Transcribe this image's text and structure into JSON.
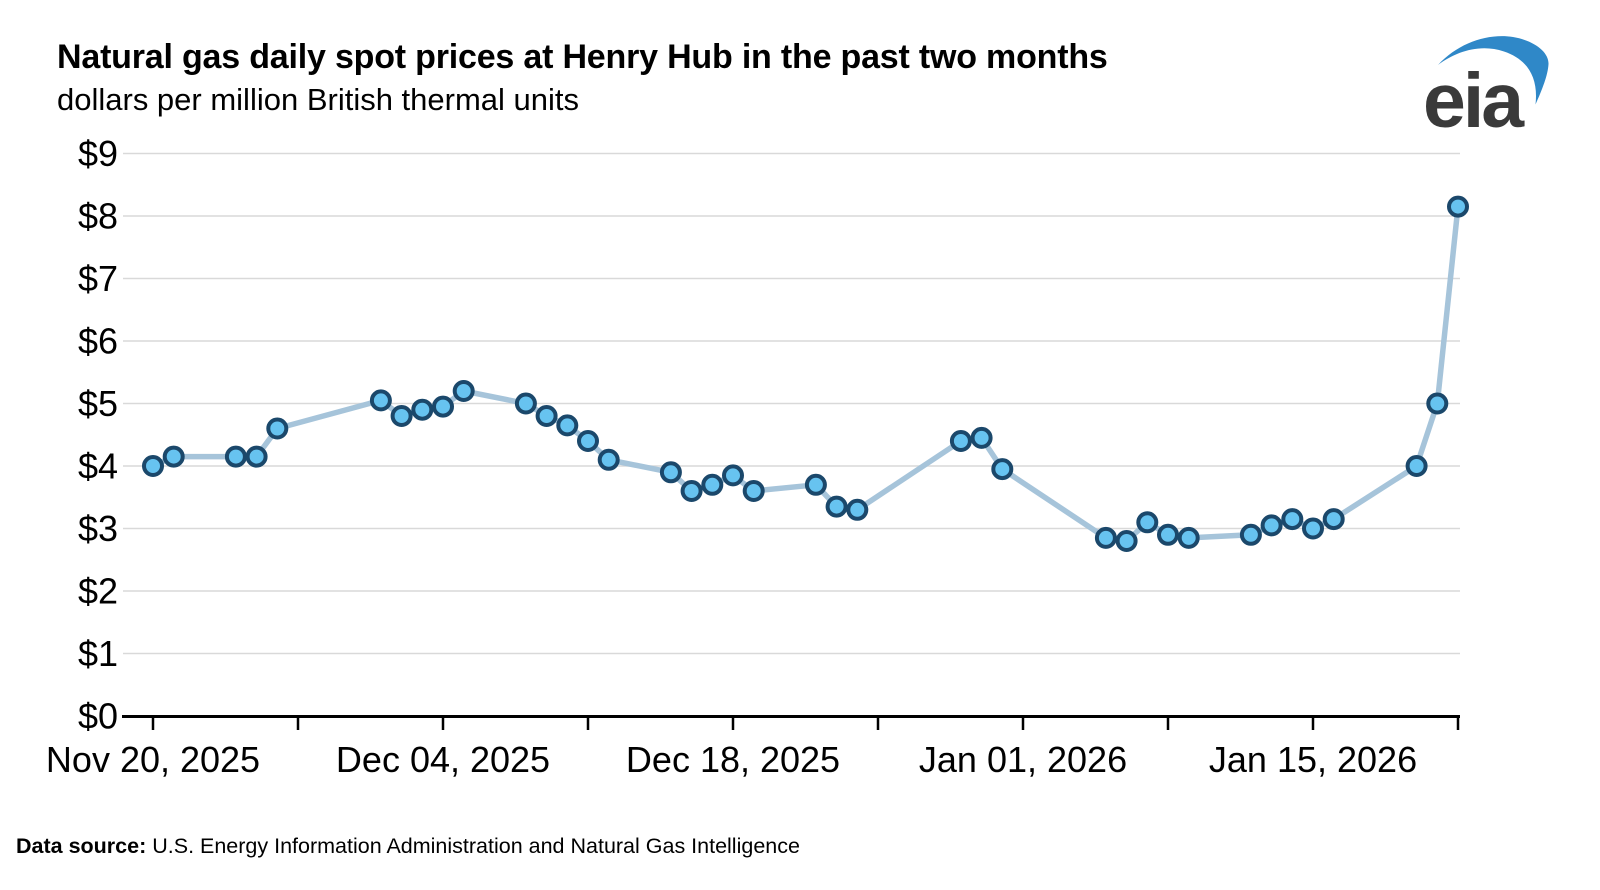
{
  "header": {
    "title": "Natural gas daily spot prices at Henry Hub in the past two months",
    "subtitle": "dollars per million British thermal units"
  },
  "logo": {
    "text": "eia"
  },
  "footer": {
    "source_label": "Data source:",
    "source_text": " U.S. Energy Information Administration and Natural Gas Intelligence"
  },
  "chart_data": {
    "type": "line",
    "title": "Natural gas daily spot prices at Henry Hub in the past two months",
    "subtitle": "dollars per million British thermal units",
    "ylabel": "dollars per million British thermal units",
    "ylim": [
      0,
      9
    ],
    "ytick_labels": [
      "$0",
      "$1",
      "$2",
      "$3",
      "$4",
      "$5",
      "$6",
      "$7",
      "$8",
      "$9"
    ],
    "grid": "horizontal",
    "legend": "none",
    "colors": {
      "line": "#a6c4da",
      "marker_fill": "#67c3f0",
      "marker_stroke": "#1b486b",
      "gridline": "#d9d9d9",
      "axis": "#000000"
    },
    "x_axis": {
      "start_date": "Nov 20, 2025",
      "end_date": "Jan 22, 2026",
      "tick_days": [
        0,
        7,
        14,
        21,
        28,
        35,
        42,
        49,
        56,
        63
      ],
      "labeled_ticks": [
        {
          "day": 0,
          "label": "Nov 20, 2025"
        },
        {
          "day": 14,
          "label": "Dec 04, 2025"
        },
        {
          "day": 28,
          "label": "Dec 18, 2025"
        },
        {
          "day": 42,
          "label": "Jan 01, 2026"
        },
        {
          "day": 56,
          "label": "Jan 15, 2026"
        }
      ]
    },
    "series": [
      {
        "name": "Henry Hub daily spot price",
        "points": [
          {
            "date": "Nov 20, 2025",
            "day": 0,
            "value": 4.0
          },
          {
            "date": "Nov 21, 2025",
            "day": 1,
            "value": 4.15
          },
          {
            "date": "Nov 24, 2025",
            "day": 4,
            "value": 4.15
          },
          {
            "date": "Nov 25, 2025",
            "day": 5,
            "value": 4.15
          },
          {
            "date": "Nov 26, 2025",
            "day": 6,
            "value": 4.6
          },
          {
            "date": "Dec 01, 2025",
            "day": 11,
            "value": 5.05
          },
          {
            "date": "Dec 02, 2025",
            "day": 12,
            "value": 4.8
          },
          {
            "date": "Dec 03, 2025",
            "day": 13,
            "value": 4.9
          },
          {
            "date": "Dec 04, 2025",
            "day": 14,
            "value": 4.95
          },
          {
            "date": "Dec 05, 2025",
            "day": 15,
            "value": 5.2
          },
          {
            "date": "Dec 08, 2025",
            "day": 18,
            "value": 5.0
          },
          {
            "date": "Dec 09, 2025",
            "day": 19,
            "value": 4.8
          },
          {
            "date": "Dec 10, 2025",
            "day": 20,
            "value": 4.65
          },
          {
            "date": "Dec 11, 2025",
            "day": 21,
            "value": 4.4
          },
          {
            "date": "Dec 12, 2025",
            "day": 22,
            "value": 4.1
          },
          {
            "date": "Dec 15, 2025",
            "day": 25,
            "value": 3.9
          },
          {
            "date": "Dec 16, 2025",
            "day": 26,
            "value": 3.6
          },
          {
            "date": "Dec 17, 2025",
            "day": 27,
            "value": 3.7
          },
          {
            "date": "Dec 18, 2025",
            "day": 28,
            "value": 3.85
          },
          {
            "date": "Dec 19, 2025",
            "day": 29,
            "value": 3.6
          },
          {
            "date": "Dec 22, 2025",
            "day": 32,
            "value": 3.7
          },
          {
            "date": "Dec 23, 2025",
            "day": 33,
            "value": 3.35
          },
          {
            "date": "Dec 24, 2025",
            "day": 34,
            "value": 3.3
          },
          {
            "date": "Dec 29, 2025",
            "day": 39,
            "value": 4.4
          },
          {
            "date": "Dec 30, 2025",
            "day": 40,
            "value": 4.45
          },
          {
            "date": "Dec 31, 2025",
            "day": 41,
            "value": 3.95
          },
          {
            "date": "Jan 05, 2026",
            "day": 46,
            "value": 2.85
          },
          {
            "date": "Jan 06, 2026",
            "day": 47,
            "value": 2.8
          },
          {
            "date": "Jan 07, 2026",
            "day": 48,
            "value": 3.1
          },
          {
            "date": "Jan 08, 2026",
            "day": 49,
            "value": 2.9
          },
          {
            "date": "Jan 09, 2026",
            "day": 50,
            "value": 2.85
          },
          {
            "date": "Jan 12, 2026",
            "day": 53,
            "value": 2.9
          },
          {
            "date": "Jan 13, 2026",
            "day": 54,
            "value": 3.05
          },
          {
            "date": "Jan 14, 2026",
            "day": 55,
            "value": 3.15
          },
          {
            "date": "Jan 15, 2026",
            "day": 56,
            "value": 3.0
          },
          {
            "date": "Jan 16, 2026",
            "day": 57,
            "value": 3.15
          },
          {
            "date": "Jan 20, 2026",
            "day": 61,
            "value": 4.0
          },
          {
            "date": "Jan 21, 2026",
            "day": 62,
            "value": 5.0
          },
          {
            "date": "Jan 22, 2026",
            "day": 63,
            "value": 8.15
          }
        ]
      }
    ]
  }
}
